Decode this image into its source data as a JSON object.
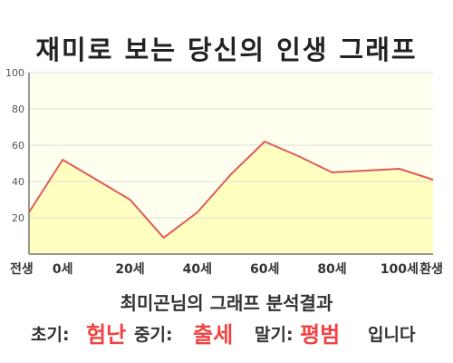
{
  "title": "재미로 보는 당신의 인생 그래프",
  "chart_data": {
    "type": "area",
    "x": [
      -10,
      0,
      20,
      30,
      40,
      50,
      60,
      70,
      80,
      100,
      110
    ],
    "values": [
      23,
      52,
      30,
      9,
      23,
      44,
      62,
      54,
      45,
      47,
      41
    ],
    "xticks": [
      -10,
      0,
      20,
      40,
      60,
      80,
      100,
      110
    ],
    "xticklabels": [
      "전생",
      "0세",
      "20세",
      "40세",
      "60세",
      "80세",
      "100세",
      "환생"
    ],
    "yticks": [
      20,
      40,
      60,
      80,
      100
    ],
    "yticklabels": [
      "20",
      "40",
      "60",
      "80",
      "100"
    ],
    "xlim": [
      -10,
      110
    ],
    "ylim": [
      0,
      100
    ],
    "grid": true,
    "line_color": "#e05a5a",
    "fill_color": "#ffffc0",
    "plot_bg": "#fffff0"
  },
  "summary": {
    "heading": "최미곤님의 그래프 분석결과",
    "early_label": "초기:",
    "early_value": "험난",
    "middle_label": "중기:",
    "middle_value": "출세",
    "late_label": "말기:",
    "late_value": "평범",
    "suffix": "입니다",
    "accent_color": "#ee4444"
  }
}
